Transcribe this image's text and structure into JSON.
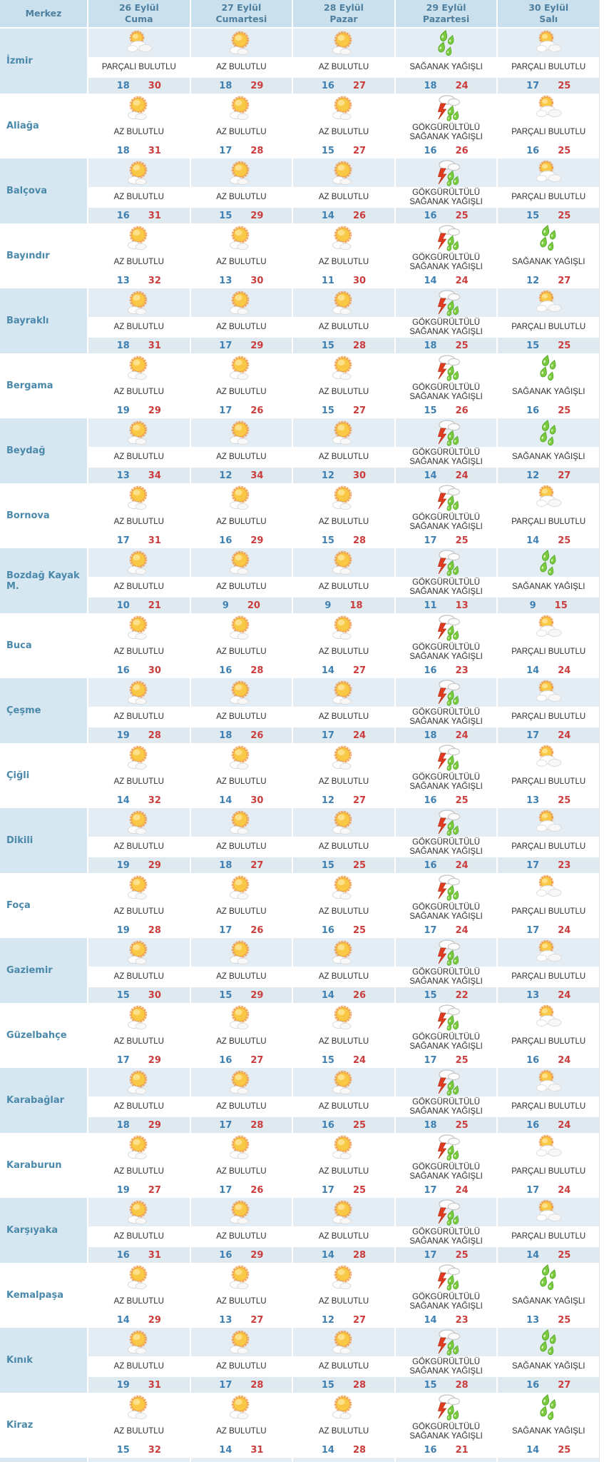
{
  "table": {
    "merkez_header": "Merkez",
    "day_columns": [
      {
        "date": "26 Eylül",
        "day": "Cuma"
      },
      {
        "date": "27 Eylül",
        "day": "Cumartesi"
      },
      {
        "date": "28 Eylül",
        "day": "Pazar"
      },
      {
        "date": "29 Eylül",
        "day": "Pazartesi"
      },
      {
        "date": "30 Eylül",
        "day": "Salı"
      }
    ],
    "rows": [
      {
        "merkez": "İzmir",
        "forecasts": [
          {
            "condition": "PARÇALI BULUTLU",
            "icon": "partly-cloudy-icon",
            "min": 18,
            "max": 30
          },
          {
            "condition": "AZ BULUTLU",
            "icon": "mostly-sunny-icon",
            "min": 18,
            "max": 29
          },
          {
            "condition": "AZ BULUTLU",
            "icon": "mostly-sunny-icon",
            "min": 16,
            "max": 27
          },
          {
            "condition": "SAĞANAK YAĞIŞLI",
            "icon": "rain-showers-icon",
            "min": 18,
            "max": 24
          },
          {
            "condition": "PARÇALI BULUTLU",
            "icon": "partly-cloudy-icon",
            "min": 17,
            "max": 25
          }
        ]
      },
      {
        "merkez": "Aliağa",
        "forecasts": [
          {
            "condition": "AZ BULUTLU",
            "icon": "mostly-sunny-icon",
            "min": 18,
            "max": 31
          },
          {
            "condition": "AZ BULUTLU",
            "icon": "mostly-sunny-icon",
            "min": 17,
            "max": 28
          },
          {
            "condition": "AZ BULUTLU",
            "icon": "mostly-sunny-icon",
            "min": 15,
            "max": 27
          },
          {
            "condition": "GÖKGÜRÜLTÜLÜ SAĞANAK YAĞIŞLI",
            "icon": "thunderstorm-icon",
            "min": 16,
            "max": 26
          },
          {
            "condition": "PARÇALI BULUTLU",
            "icon": "partly-cloudy-icon",
            "min": 16,
            "max": 25
          }
        ]
      },
      {
        "merkez": "Balçova",
        "forecasts": [
          {
            "condition": "AZ BULUTLU",
            "icon": "mostly-sunny-icon",
            "min": 16,
            "max": 31
          },
          {
            "condition": "AZ BULUTLU",
            "icon": "mostly-sunny-icon",
            "min": 15,
            "max": 29
          },
          {
            "condition": "AZ BULUTLU",
            "icon": "mostly-sunny-icon",
            "min": 14,
            "max": 26
          },
          {
            "condition": "GÖKGÜRÜLTÜLÜ SAĞANAK YAĞIŞLI",
            "icon": "thunderstorm-icon",
            "min": 16,
            "max": 25
          },
          {
            "condition": "PARÇALI BULUTLU",
            "icon": "partly-cloudy-icon",
            "min": 15,
            "max": 25
          }
        ]
      },
      {
        "merkez": "Bayındır",
        "forecasts": [
          {
            "condition": "AZ BULUTLU",
            "icon": "mostly-sunny-icon",
            "min": 13,
            "max": 32
          },
          {
            "condition": "AZ BULUTLU",
            "icon": "mostly-sunny-icon",
            "min": 13,
            "max": 30
          },
          {
            "condition": "AZ BULUTLU",
            "icon": "mostly-sunny-icon",
            "min": 11,
            "max": 30
          },
          {
            "condition": "GÖKGÜRÜLTÜLÜ SAĞANAK YAĞIŞLI",
            "icon": "thunderstorm-icon",
            "min": 14,
            "max": 24
          },
          {
            "condition": "SAĞANAK YAĞIŞLI",
            "icon": "rain-showers-icon",
            "min": 12,
            "max": 27
          }
        ]
      },
      {
        "merkez": "Bayraklı",
        "forecasts": [
          {
            "condition": "AZ BULUTLU",
            "icon": "mostly-sunny-icon",
            "min": 18,
            "max": 31
          },
          {
            "condition": "AZ BULUTLU",
            "icon": "mostly-sunny-icon",
            "min": 17,
            "max": 29
          },
          {
            "condition": "AZ BULUTLU",
            "icon": "mostly-sunny-icon",
            "min": 15,
            "max": 28
          },
          {
            "condition": "GÖKGÜRÜLTÜLÜ SAĞANAK YAĞIŞLI",
            "icon": "thunderstorm-icon",
            "min": 18,
            "max": 25
          },
          {
            "condition": "PARÇALI BULUTLU",
            "icon": "partly-cloudy-icon",
            "min": 15,
            "max": 25
          }
        ]
      },
      {
        "merkez": "Bergama",
        "forecasts": [
          {
            "condition": "AZ BULUTLU",
            "icon": "mostly-sunny-icon",
            "min": 19,
            "max": 29
          },
          {
            "condition": "AZ BULUTLU",
            "icon": "mostly-sunny-icon",
            "min": 17,
            "max": 26
          },
          {
            "condition": "AZ BULUTLU",
            "icon": "mostly-sunny-icon",
            "min": 15,
            "max": 27
          },
          {
            "condition": "GÖKGÜRÜLTÜLÜ SAĞANAK YAĞIŞLI",
            "icon": "thunderstorm-icon",
            "min": 15,
            "max": 26
          },
          {
            "condition": "SAĞANAK YAĞIŞLI",
            "icon": "rain-showers-icon",
            "min": 16,
            "max": 25
          }
        ]
      },
      {
        "merkez": "Beydağ",
        "forecasts": [
          {
            "condition": "AZ BULUTLU",
            "icon": "mostly-sunny-icon",
            "min": 13,
            "max": 34
          },
          {
            "condition": "AZ BULUTLU",
            "icon": "mostly-sunny-icon",
            "min": 12,
            "max": 34
          },
          {
            "condition": "AZ BULUTLU",
            "icon": "mostly-sunny-icon",
            "min": 12,
            "max": 30
          },
          {
            "condition": "GÖKGÜRÜLTÜLÜ SAĞANAK YAĞIŞLI",
            "icon": "thunderstorm-icon",
            "min": 14,
            "max": 24
          },
          {
            "condition": "SAĞANAK YAĞIŞLI",
            "icon": "rain-showers-icon",
            "min": 12,
            "max": 27
          }
        ]
      },
      {
        "merkez": "Bornova",
        "forecasts": [
          {
            "condition": "AZ BULUTLU",
            "icon": "mostly-sunny-icon",
            "min": 17,
            "max": 31
          },
          {
            "condition": "AZ BULUTLU",
            "icon": "mostly-sunny-icon",
            "min": 16,
            "max": 29
          },
          {
            "condition": "AZ BULUTLU",
            "icon": "mostly-sunny-icon",
            "min": 15,
            "max": 28
          },
          {
            "condition": "GÖKGÜRÜLTÜLÜ SAĞANAK YAĞIŞLI",
            "icon": "thunderstorm-icon",
            "min": 17,
            "max": 25
          },
          {
            "condition": "PARÇALI BULUTLU",
            "icon": "partly-cloudy-icon",
            "min": 14,
            "max": 25
          }
        ]
      },
      {
        "merkez": "Bozdağ Kayak M.",
        "forecasts": [
          {
            "condition": "AZ BULUTLU",
            "icon": "mostly-sunny-icon",
            "min": 10,
            "max": 21
          },
          {
            "condition": "AZ BULUTLU",
            "icon": "mostly-sunny-icon",
            "min": 9,
            "max": 20
          },
          {
            "condition": "AZ BULUTLU",
            "icon": "mostly-sunny-icon",
            "min": 9,
            "max": 18
          },
          {
            "condition": "GÖKGÜRÜLTÜLÜ SAĞANAK YAĞIŞLI",
            "icon": "thunderstorm-icon",
            "min": 11,
            "max": 13
          },
          {
            "condition": "SAĞANAK YAĞIŞLI",
            "icon": "rain-showers-icon",
            "min": 9,
            "max": 15
          }
        ]
      },
      {
        "merkez": "Buca",
        "forecasts": [
          {
            "condition": "AZ BULUTLU",
            "icon": "mostly-sunny-icon",
            "min": 16,
            "max": 30
          },
          {
            "condition": "AZ BULUTLU",
            "icon": "mostly-sunny-icon",
            "min": 16,
            "max": 28
          },
          {
            "condition": "AZ BULUTLU",
            "icon": "mostly-sunny-icon",
            "min": 14,
            "max": 27
          },
          {
            "condition": "GÖKGÜRÜLTÜLÜ SAĞANAK YAĞIŞLI",
            "icon": "thunderstorm-icon",
            "min": 16,
            "max": 23
          },
          {
            "condition": "PARÇALI BULUTLU",
            "icon": "partly-cloudy-icon",
            "min": 14,
            "max": 24
          }
        ]
      },
      {
        "merkez": "Çeşme",
        "forecasts": [
          {
            "condition": "AZ BULUTLU",
            "icon": "mostly-sunny-icon",
            "min": 19,
            "max": 28
          },
          {
            "condition": "AZ BULUTLU",
            "icon": "mostly-sunny-icon",
            "min": 18,
            "max": 26
          },
          {
            "condition": "AZ BULUTLU",
            "icon": "mostly-sunny-icon",
            "min": 17,
            "max": 24
          },
          {
            "condition": "GÖKGÜRÜLTÜLÜ SAĞANAK YAĞIŞLI",
            "icon": "thunderstorm-icon",
            "min": 18,
            "max": 24
          },
          {
            "condition": "PARÇALI BULUTLU",
            "icon": "partly-cloudy-icon",
            "min": 17,
            "max": 24
          }
        ]
      },
      {
        "merkez": "Çiğli",
        "forecasts": [
          {
            "condition": "AZ BULUTLU",
            "icon": "mostly-sunny-icon",
            "min": 14,
            "max": 32
          },
          {
            "condition": "AZ BULUTLU",
            "icon": "mostly-sunny-icon",
            "min": 14,
            "max": 30
          },
          {
            "condition": "AZ BULUTLU",
            "icon": "mostly-sunny-icon",
            "min": 12,
            "max": 27
          },
          {
            "condition": "GÖKGÜRÜLTÜLÜ SAĞANAK YAĞIŞLI",
            "icon": "thunderstorm-icon",
            "min": 16,
            "max": 25
          },
          {
            "condition": "PARÇALI BULUTLU",
            "icon": "partly-cloudy-icon",
            "min": 13,
            "max": 25
          }
        ]
      },
      {
        "merkez": "Dikili",
        "forecasts": [
          {
            "condition": "AZ BULUTLU",
            "icon": "mostly-sunny-icon",
            "min": 19,
            "max": 29
          },
          {
            "condition": "AZ BULUTLU",
            "icon": "mostly-sunny-icon",
            "min": 18,
            "max": 27
          },
          {
            "condition": "AZ BULUTLU",
            "icon": "mostly-sunny-icon",
            "min": 15,
            "max": 25
          },
          {
            "condition": "GÖKGÜRÜLTÜLÜ SAĞANAK YAĞIŞLI",
            "icon": "thunderstorm-icon",
            "min": 16,
            "max": 24
          },
          {
            "condition": "PARÇALI BULUTLU",
            "icon": "partly-cloudy-icon",
            "min": 17,
            "max": 23
          }
        ]
      },
      {
        "merkez": "Foça",
        "forecasts": [
          {
            "condition": "AZ BULUTLU",
            "icon": "mostly-sunny-icon",
            "min": 19,
            "max": 28
          },
          {
            "condition": "AZ BULUTLU",
            "icon": "mostly-sunny-icon",
            "min": 17,
            "max": 26
          },
          {
            "condition": "AZ BULUTLU",
            "icon": "mostly-sunny-icon",
            "min": 16,
            "max": 25
          },
          {
            "condition": "GÖKGÜRÜLTÜLÜ SAĞANAK YAĞIŞLI",
            "icon": "thunderstorm-icon",
            "min": 17,
            "max": 24
          },
          {
            "condition": "PARÇALI BULUTLU",
            "icon": "partly-cloudy-icon",
            "min": 17,
            "max": 24
          }
        ]
      },
      {
        "merkez": "Gaziemir",
        "forecasts": [
          {
            "condition": "AZ BULUTLU",
            "icon": "mostly-sunny-icon",
            "min": 15,
            "max": 30
          },
          {
            "condition": "AZ BULUTLU",
            "icon": "mostly-sunny-icon",
            "min": 15,
            "max": 29
          },
          {
            "condition": "AZ BULUTLU",
            "icon": "mostly-sunny-icon",
            "min": 14,
            "max": 26
          },
          {
            "condition": "GÖKGÜRÜLTÜLÜ SAĞANAK YAĞIŞLI",
            "icon": "thunderstorm-icon",
            "min": 15,
            "max": 22
          },
          {
            "condition": "PARÇALI BULUTLU",
            "icon": "partly-cloudy-icon",
            "min": 13,
            "max": 24
          }
        ]
      },
      {
        "merkez": "Güzelbahçe",
        "forecasts": [
          {
            "condition": "AZ BULUTLU",
            "icon": "mostly-sunny-icon",
            "min": 17,
            "max": 29
          },
          {
            "condition": "AZ BULUTLU",
            "icon": "mostly-sunny-icon",
            "min": 16,
            "max": 27
          },
          {
            "condition": "AZ BULUTLU",
            "icon": "mostly-sunny-icon",
            "min": 15,
            "max": 24
          },
          {
            "condition": "GÖKGÜRÜLTÜLÜ SAĞANAK YAĞIŞLI",
            "icon": "thunderstorm-icon",
            "min": 17,
            "max": 25
          },
          {
            "condition": "PARÇALI BULUTLU",
            "icon": "partly-cloudy-icon",
            "min": 16,
            "max": 24
          }
        ]
      },
      {
        "merkez": "Karabağlar",
        "forecasts": [
          {
            "condition": "AZ BULUTLU",
            "icon": "mostly-sunny-icon",
            "min": 18,
            "max": 29
          },
          {
            "condition": "AZ BULUTLU",
            "icon": "mostly-sunny-icon",
            "min": 17,
            "max": 28
          },
          {
            "condition": "AZ BULUTLU",
            "icon": "mostly-sunny-icon",
            "min": 16,
            "max": 25
          },
          {
            "condition": "GÖKGÜRÜLTÜLÜ SAĞANAK YAĞIŞLI",
            "icon": "thunderstorm-icon",
            "min": 18,
            "max": 25
          },
          {
            "condition": "PARÇALI BULUTLU",
            "icon": "partly-cloudy-icon",
            "min": 16,
            "max": 24
          }
        ]
      },
      {
        "merkez": "Karaburun",
        "forecasts": [
          {
            "condition": "AZ BULUTLU",
            "icon": "mostly-sunny-icon",
            "min": 19,
            "max": 27
          },
          {
            "condition": "AZ BULUTLU",
            "icon": "mostly-sunny-icon",
            "min": 17,
            "max": 26
          },
          {
            "condition": "AZ BULUTLU",
            "icon": "mostly-sunny-icon",
            "min": 17,
            "max": 25
          },
          {
            "condition": "GÖKGÜRÜLTÜLÜ SAĞANAK YAĞIŞLI",
            "icon": "thunderstorm-icon",
            "min": 17,
            "max": 24
          },
          {
            "condition": "PARÇALI BULUTLU",
            "icon": "partly-cloudy-icon",
            "min": 17,
            "max": 24
          }
        ]
      },
      {
        "merkez": "Karşıyaka",
        "forecasts": [
          {
            "condition": "AZ BULUTLU",
            "icon": "mostly-sunny-icon",
            "min": 16,
            "max": 31
          },
          {
            "condition": "AZ BULUTLU",
            "icon": "mostly-sunny-icon",
            "min": 16,
            "max": 29
          },
          {
            "condition": "AZ BULUTLU",
            "icon": "mostly-sunny-icon",
            "min": 14,
            "max": 28
          },
          {
            "condition": "GÖKGÜRÜLTÜLÜ SAĞANAK YAĞIŞLI",
            "icon": "thunderstorm-icon",
            "min": 17,
            "max": 25
          },
          {
            "condition": "PARÇALI BULUTLU",
            "icon": "partly-cloudy-icon",
            "min": 14,
            "max": 25
          }
        ]
      },
      {
        "merkez": "Kemalpaşa",
        "forecasts": [
          {
            "condition": "AZ BULUTLU",
            "icon": "mostly-sunny-icon",
            "min": 14,
            "max": 29
          },
          {
            "condition": "AZ BULUTLU",
            "icon": "mostly-sunny-icon",
            "min": 13,
            "max": 27
          },
          {
            "condition": "AZ BULUTLU",
            "icon": "mostly-sunny-icon",
            "min": 12,
            "max": 27
          },
          {
            "condition": "GÖKGÜRÜLTÜLÜ SAĞANAK YAĞIŞLI",
            "icon": "thunderstorm-icon",
            "min": 14,
            "max": 23
          },
          {
            "condition": "SAĞANAK YAĞIŞLI",
            "icon": "rain-showers-icon",
            "min": 13,
            "max": 25
          }
        ]
      },
      {
        "merkez": "Kınık",
        "forecasts": [
          {
            "condition": "AZ BULUTLU",
            "icon": "mostly-sunny-icon",
            "min": 19,
            "max": 31
          },
          {
            "condition": "AZ BULUTLU",
            "icon": "mostly-sunny-icon",
            "min": 17,
            "max": 28
          },
          {
            "condition": "AZ BULUTLU",
            "icon": "mostly-sunny-icon",
            "min": 15,
            "max": 28
          },
          {
            "condition": "GÖKGÜRÜLTÜLÜ SAĞANAK YAĞIŞLI",
            "icon": "thunderstorm-icon",
            "min": 15,
            "max": 28
          },
          {
            "condition": "SAĞANAK YAĞIŞLI",
            "icon": "rain-showers-icon",
            "min": 16,
            "max": 27
          }
        ]
      },
      {
        "merkez": "Kiraz",
        "forecasts": [
          {
            "condition": "AZ BULUTLU",
            "icon": "mostly-sunny-icon",
            "min": 15,
            "max": 32
          },
          {
            "condition": "AZ BULUTLU",
            "icon": "mostly-sunny-icon",
            "min": 14,
            "max": 31
          },
          {
            "condition": "AZ BULUTLU",
            "icon": "mostly-sunny-icon",
            "min": 14,
            "max": 28
          },
          {
            "condition": "GÖKGÜRÜLTÜLÜ SAĞANAK YAĞIŞLI",
            "icon": "thunderstorm-icon",
            "min": 16,
            "max": 21
          },
          {
            "condition": "SAĞANAK YAĞIŞLI",
            "icon": "rain-showers-icon",
            "min": 14,
            "max": 25
          }
        ]
      }
    ]
  },
  "colors": {
    "header_bg": "#cbe0ed",
    "header_text": "#4e7f9e",
    "alt_row_bg": "#e3edf3",
    "alt_merkez_bg": "#d6e7f1",
    "temp_min": "#3f80b2",
    "temp_max": "#cb3d3d",
    "merkez_text": "#4b89ab",
    "rain_drop_green": "#7ccb3f",
    "lightning_red": "#e23c20",
    "sun_yellow": "#f9c845"
  }
}
